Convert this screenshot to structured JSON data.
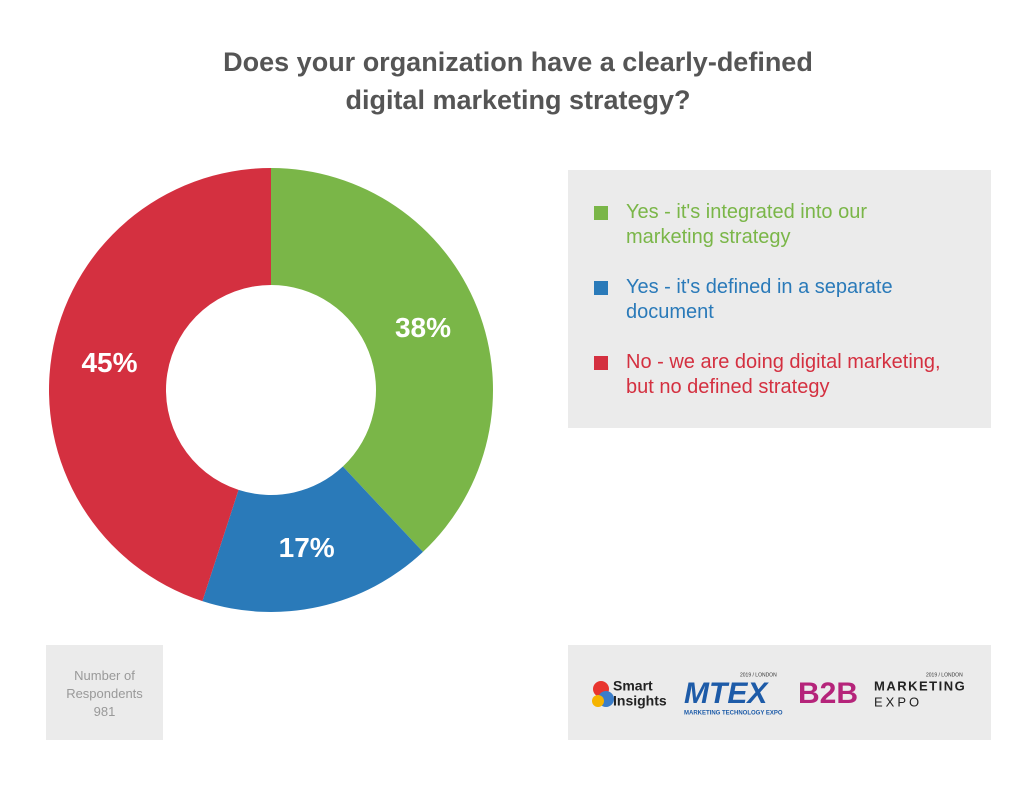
{
  "chart_data": {
    "type": "pie",
    "title": [
      "Does your organization have a clearly-defined",
      "digital marketing strategy?"
    ],
    "categories": [
      "Yes - it's integrated into our marketing strategy",
      "Yes - it's defined in a separate document",
      "No - we are doing digital marketing, but no defined strategy"
    ],
    "values": [
      38,
      17,
      45
    ],
    "value_labels": [
      "38%",
      "17%",
      "45%"
    ],
    "colors": [
      "#7ab648",
      "#2a7ab9",
      "#d43040"
    ]
  },
  "respondents": {
    "label": "Number of Respondents",
    "value": 981
  },
  "logos": {
    "smart_insights": [
      "Smart",
      "Insights"
    ],
    "mtex": "MTEX",
    "mtex_sub": "MARKETING TECHNOLOGY EXPO",
    "year": "2019 / LONDON",
    "b2b": "B2B",
    "b2b_sub": [
      "MARKETING",
      "EXPO"
    ]
  }
}
